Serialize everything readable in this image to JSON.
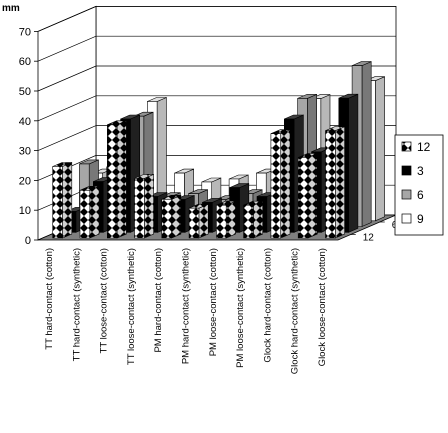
{
  "chart_data": {
    "type": "bar",
    "style": "3d-clustered",
    "ylabel": "mm",
    "ylim": [
      0,
      70
    ],
    "ytick_step": 10,
    "grid": true,
    "legend_position": "right",
    "depth_labels": [
      "6",
      "12"
    ],
    "categories": [
      "TT hard-contact (cotton)",
      "TT hard-contact (synthetic)",
      "TT loose-contact (cotton)",
      "TT loose-contact (synthetic)",
      "PM hard-contact (cotton)",
      "PM hard-contact (synthetic)",
      "PM loose-contact (cotton)",
      "PM loose-contact (synthetic)",
      "Glock hard-contact (cotton)",
      "Glock hard-contact (synthetic)",
      "Glock  loose-contact (cotton)"
    ],
    "series": [
      {
        "name": "12",
        "values": [
          24,
          16,
          38,
          20,
          13,
          10,
          11,
          11,
          35,
          27,
          36
        ],
        "pattern": "diamond"
      },
      {
        "name": "3",
        "values": [
          7,
          17,
          38,
          12,
          11,
          10,
          15,
          12,
          38,
          27,
          45
        ],
        "color": "#000000"
      },
      {
        "name": "6",
        "values": [
          21,
          20,
          37,
          10,
          11,
          9,
          11,
          9,
          43,
          25,
          54
        ],
        "color": "#a6a6a6"
      },
      {
        "name": "9",
        "values": [
          16,
          22,
          40,
          16,
          13,
          14,
          16,
          8,
          41,
          27,
          47
        ],
        "color": "#ffffff"
      }
    ]
  }
}
